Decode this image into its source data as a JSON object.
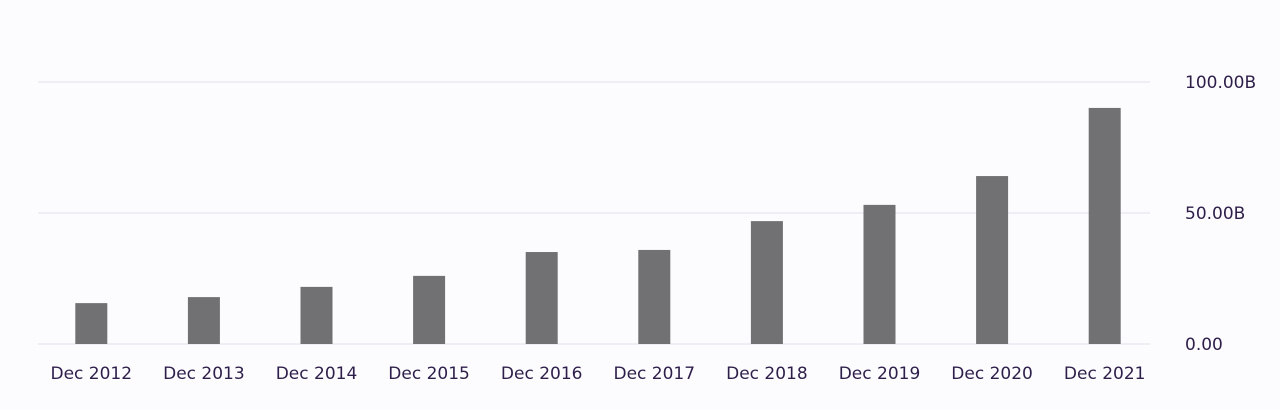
{
  "chart_data": {
    "type": "bar",
    "categories": [
      "Dec 2012",
      "Dec 2013",
      "Dec 2014",
      "Dec 2015",
      "Dec 2016",
      "Dec 2017",
      "Dec 2018",
      "Dec 2019",
      "Dec 2020",
      "Dec 2021"
    ],
    "values": [
      15.6,
      17.9,
      21.8,
      26.0,
      35.1,
      35.9,
      46.9,
      53.1,
      64.1,
      90.1
    ],
    "color": "#717072",
    "ylim": [
      0,
      100
    ],
    "yticks": [
      {
        "value": 0,
        "label": "0.00"
      },
      {
        "value": 50,
        "label": "50.00B"
      },
      {
        "value": 100,
        "label": "100.00B"
      }
    ],
    "grid": true
  }
}
